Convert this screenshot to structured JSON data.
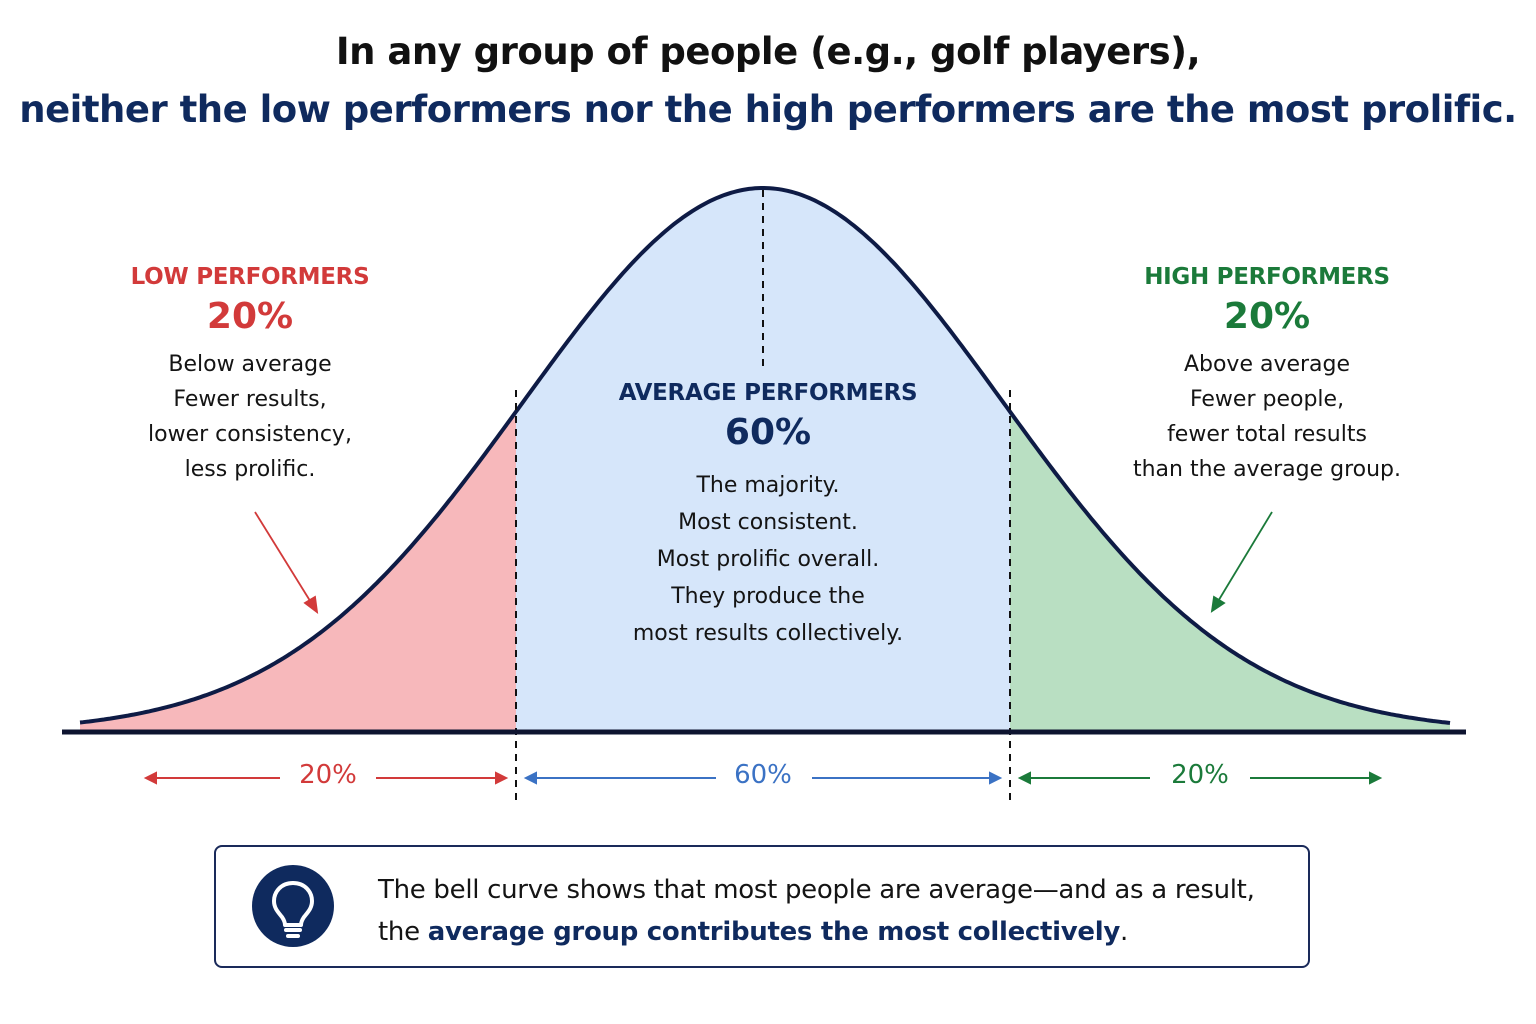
{
  "title": {
    "line1": "In any group of people (e.g., golf players),",
    "line2": "neither the low performers nor the high performers are the most prolific."
  },
  "groups": {
    "low": {
      "heading": "LOW PERFORMERS",
      "percent": "20%",
      "lines": [
        "Below average",
        "Fewer results,",
        "lower consistency,",
        "less prolific."
      ]
    },
    "average": {
      "heading": "AVERAGE PERFORMERS",
      "percent": "60%",
      "lines": [
        "The majority.",
        "Most consistent.",
        "Most prolific overall.",
        "They produce the",
        "most results collectively."
      ]
    },
    "high": {
      "heading": "HIGH PERFORMERS",
      "percent": "20%",
      "lines": [
        "Above average",
        "Fewer people,",
        "fewer total results",
        "than the average group."
      ]
    }
  },
  "ranges": {
    "low": "20%",
    "mid": "60%",
    "high": "20%"
  },
  "callout": {
    "line1": "The bell curve shows that most people are average—and as a result,",
    "line2_prefix": "the ",
    "line2_emphasis": "average group contributes the most collectively",
    "line2_suffix": "."
  },
  "colors": {
    "low": "#d23a3a",
    "low_fill": "#f7b8bb",
    "average": "#0f2a5e",
    "average_fill": "#d6e6fa",
    "high": "#1b7a3a",
    "high_fill": "#b9dfc2",
    "mid_arrow": "#3b72c4"
  },
  "icons": {
    "callout": "lightbulb-icon"
  }
}
